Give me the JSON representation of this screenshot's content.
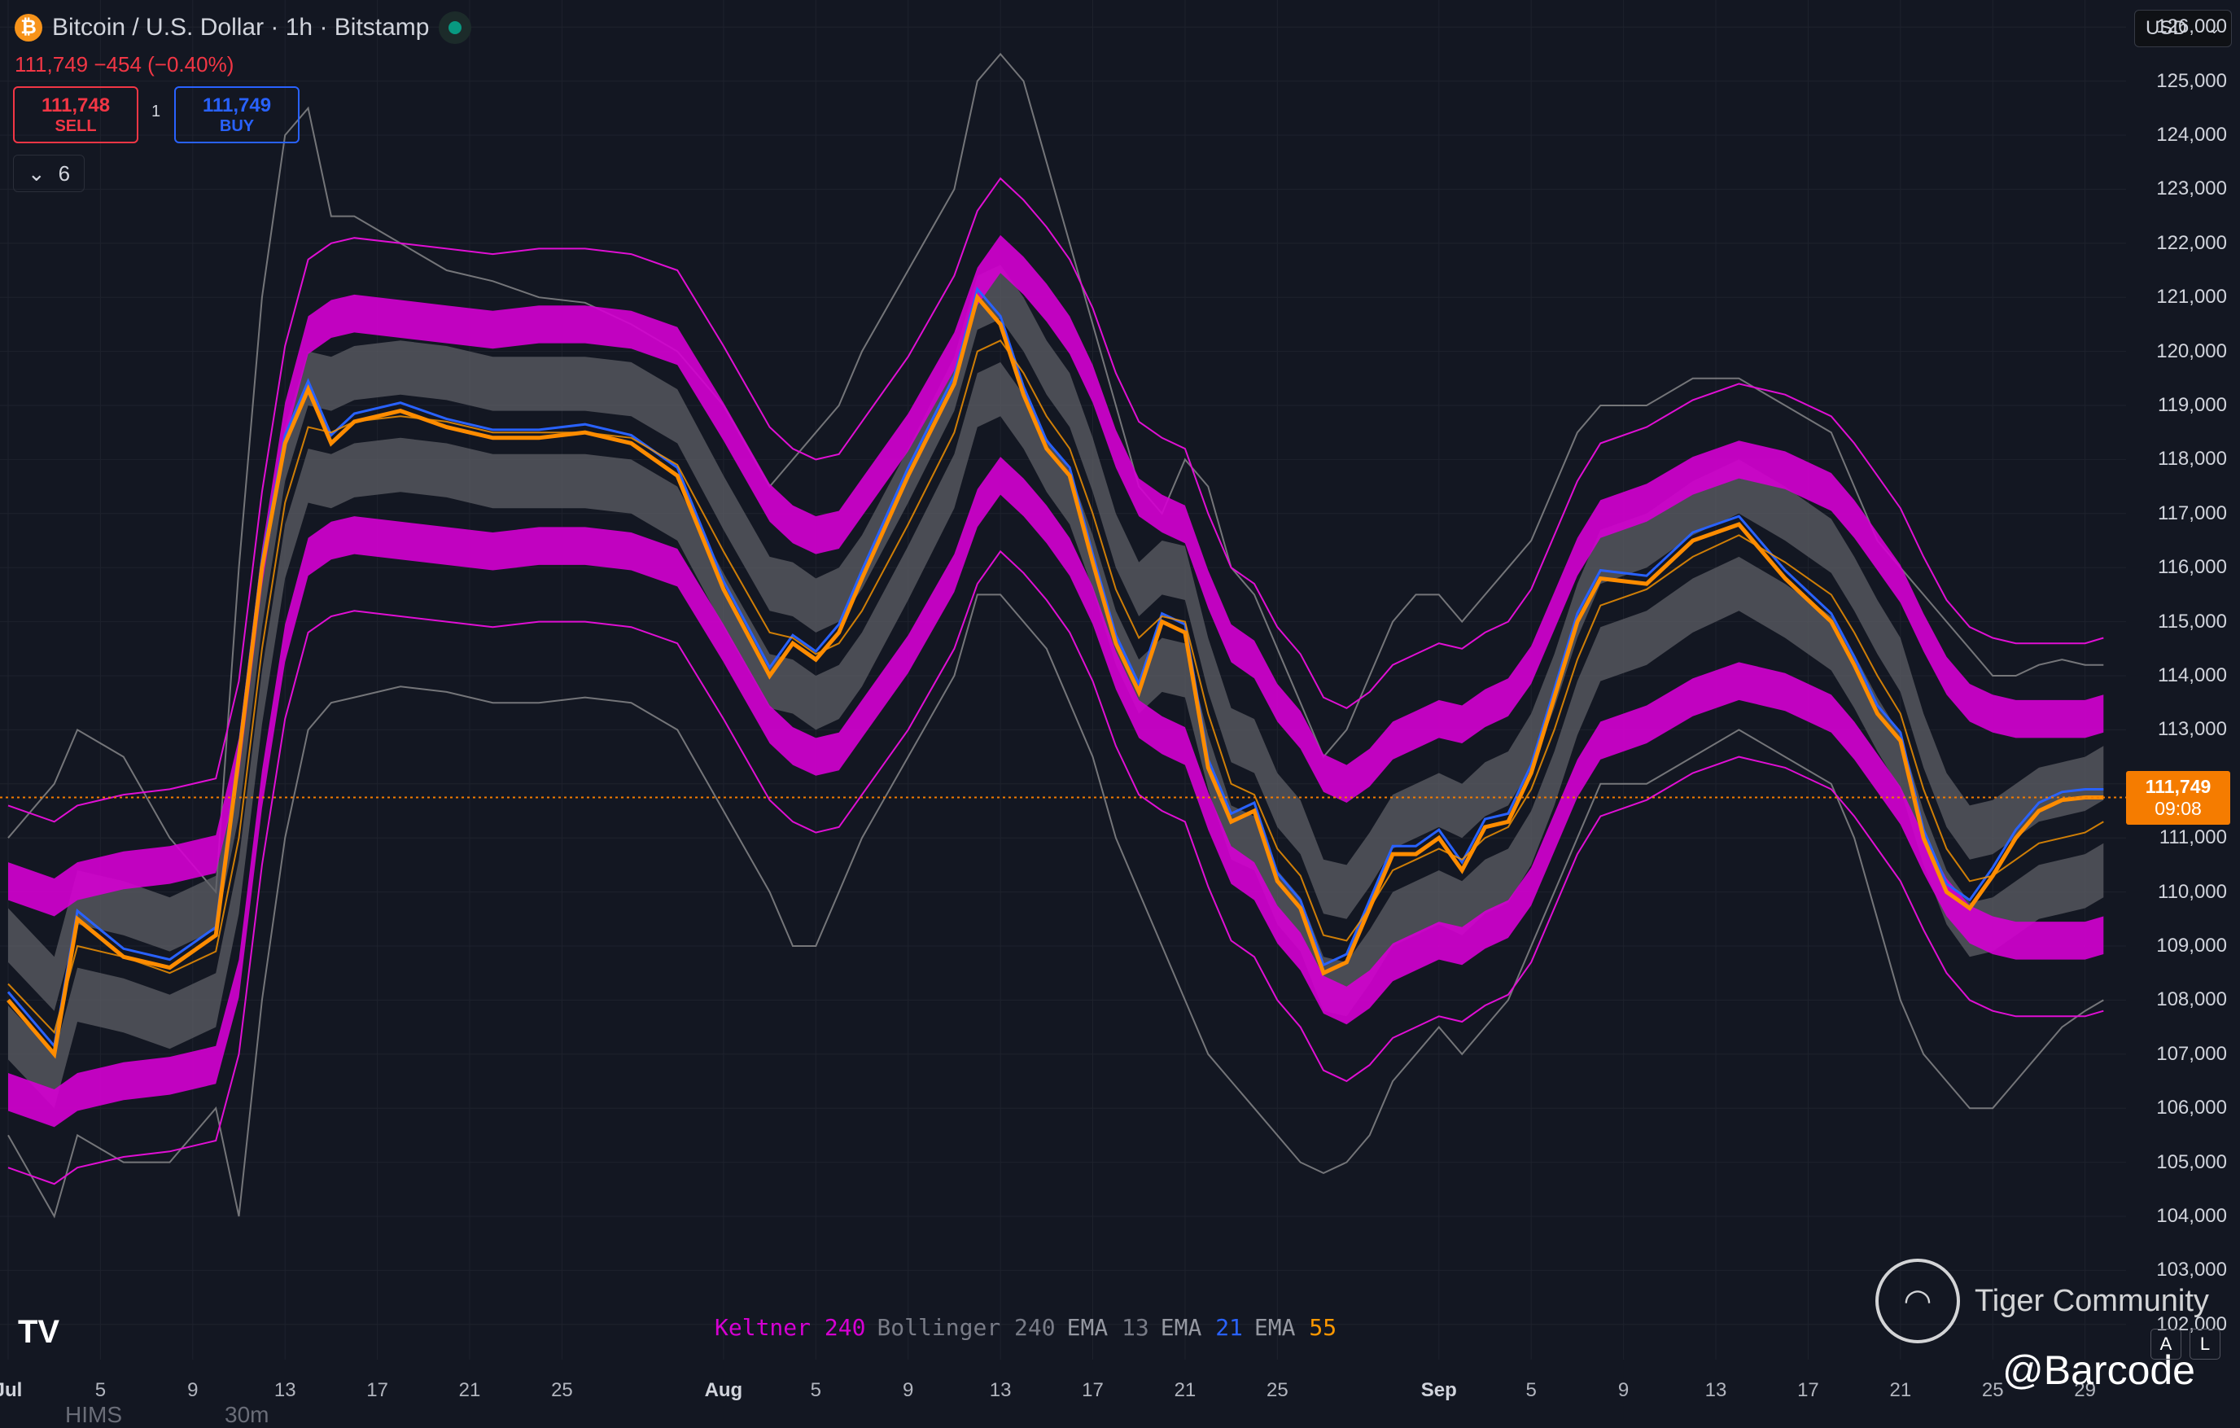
{
  "header": {
    "title": "Bitcoin / U.S. Dollar · 1h · Bitstamp",
    "icon": "bitcoin-icon",
    "change": "111,749 −454 (−0.40%)",
    "sell_price": "111,748",
    "sell_label": "SELL",
    "buy_price": "111,749",
    "buy_label": "BUY",
    "qty": "1",
    "collapse_count": "6",
    "currency": "USD"
  },
  "colors": {
    "keltner": "#e00fd4",
    "bollinger": "#b3b3b3",
    "ema13": "#2962ff",
    "ema21": "#ff9800",
    "ema55": "#ff8c00",
    "price_tag": "#f57c00",
    "background": "#131722"
  },
  "last_price": {
    "value": "111,749",
    "countdown": "09:08"
  },
  "legend": [
    {
      "name": "Keltner",
      "value": "240",
      "color": "#d500d2"
    },
    {
      "name": "Bollinger",
      "value": "240",
      "color": "#787b86"
    },
    {
      "name": "EMA",
      "value": "13",
      "color": "#787b86"
    },
    {
      "name": "EMA",
      "value": "21",
      "color": "#2962ff"
    },
    {
      "name": "EMA",
      "value": "55",
      "color": "#ff9800"
    }
  ],
  "watermark": {
    "community": "Tiger Community",
    "handle": "@Barcode"
  },
  "bottom_strip": {
    "symbol": "HIMS",
    "interval": "30m"
  },
  "toolbar": {
    "auto_label": "A",
    "log_label": "L"
  },
  "chart_data": {
    "type": "line",
    "title": "Bitcoin / U.S. Dollar · 1h · Bitstamp",
    "ylim": [
      101500,
      126500
    ],
    "y_ticks": [
      102000,
      103000,
      104000,
      105000,
      106000,
      107000,
      108000,
      109000,
      110000,
      111000,
      112000,
      113000,
      114000,
      115000,
      116000,
      117000,
      118000,
      119000,
      120000,
      121000,
      122000,
      123000,
      124000,
      125000,
      126000
    ],
    "x_day_range": [
      1,
      92
    ],
    "x_ticks": [
      {
        "label": "Jul",
        "day": 1,
        "major": true
      },
      {
        "label": "5",
        "day": 5
      },
      {
        "label": "9",
        "day": 9
      },
      {
        "label": "13",
        "day": 13
      },
      {
        "label": "17",
        "day": 17
      },
      {
        "label": "21",
        "day": 21
      },
      {
        "label": "25",
        "day": 25
      },
      {
        "label": "Aug",
        "day": 32,
        "major": true
      },
      {
        "label": "5",
        "day": 36
      },
      {
        "label": "9",
        "day": 40
      },
      {
        "label": "13",
        "day": 44
      },
      {
        "label": "17",
        "day": 48
      },
      {
        "label": "21",
        "day": 52
      },
      {
        "label": "25",
        "day": 56
      },
      {
        "label": "Sep",
        "day": 63,
        "major": true
      },
      {
        "label": "5",
        "day": 67
      },
      {
        "label": "9",
        "day": 71
      },
      {
        "label": "13",
        "day": 75
      },
      {
        "label": "17",
        "day": 79
      },
      {
        "label": "21",
        "day": 83
      },
      {
        "label": "25",
        "day": 87
      },
      {
        "label": "29",
        "day": 91
      }
    ],
    "x": [
      1,
      3,
      4,
      6,
      8,
      10,
      11,
      12,
      13,
      14,
      15,
      16,
      18,
      20,
      22,
      24,
      26,
      28,
      30,
      32,
      34,
      35,
      36,
      37,
      38,
      40,
      42,
      43,
      44,
      45,
      46,
      47,
      48,
      49,
      50,
      51,
      52,
      53,
      54,
      55,
      56,
      57,
      58,
      59,
      60,
      61,
      62,
      63,
      64,
      65,
      66,
      67,
      68,
      69,
      70,
      72,
      74,
      76,
      78,
      80,
      81,
      82,
      83,
      84,
      85,
      86,
      87,
      88,
      89,
      90,
      91,
      91.8
    ],
    "series": [
      {
        "name": "EMA 21",
        "values": [
          108000,
          107000,
          109500,
          108800,
          108600,
          109200,
          112500,
          116000,
          118300,
          119300,
          118300,
          118700,
          118900,
          118600,
          118400,
          118400,
          118500,
          118300,
          117700,
          115600,
          114000,
          114600,
          114300,
          114800,
          115800,
          117700,
          119400,
          121000,
          120500,
          119200,
          118200,
          117700,
          116100,
          114600,
          113700,
          115000,
          114800,
          112300,
          111300,
          111500,
          110200,
          109700,
          108500,
          108700,
          109700,
          110700,
          110700,
          111000,
          110400,
          111200,
          111300,
          112200,
          113600,
          115000,
          115800,
          115700,
          116500,
          116800,
          115800,
          115000,
          114200,
          113300,
          112800,
          111000,
          110000,
          109700,
          110300,
          111000,
          111500,
          111700,
          111749,
          111749
        ]
      },
      {
        "name": "EMA 55",
        "values": [
          108300,
          107400,
          109000,
          108800,
          108500,
          108900,
          111000,
          114500,
          117200,
          118600,
          118500,
          118700,
          118800,
          118700,
          118500,
          118500,
          118500,
          118400,
          117900,
          116300,
          114800,
          114700,
          114400,
          114600,
          115200,
          116800,
          118500,
          120000,
          120200,
          119600,
          118800,
          118200,
          117000,
          115600,
          114700,
          115100,
          115000,
          113300,
          112000,
          111800,
          110800,
          110300,
          109200,
          109100,
          109700,
          110400,
          110600,
          110800,
          110600,
          111000,
          111200,
          111900,
          113000,
          114300,
          115300,
          115600,
          116200,
          116600,
          116100,
          115500,
          114800,
          114000,
          113300,
          111900,
          110800,
          110200,
          110300,
          110600,
          110900,
          111000,
          111100,
          111300
        ]
      },
      {
        "name": "Keltner upper",
        "values": [
          110200,
          109900,
          110200,
          110400,
          110500,
          110700,
          112500,
          116000,
          118700,
          120300,
          120600,
          120700,
          120600,
          120500,
          120400,
          120500,
          120500,
          120400,
          120100,
          118700,
          117200,
          116800,
          116600,
          116700,
          117300,
          118500,
          120000,
          121200,
          121800,
          121400,
          120900,
          120300,
          119400,
          118200,
          117300,
          117000,
          116800,
          115600,
          114600,
          114300,
          113500,
          113000,
          112200,
          112000,
          112300,
          112800,
          113000,
          113200,
          113100,
          113400,
          113600,
          114200,
          115200,
          116200,
          116900,
          117200,
          117700,
          118000,
          117800,
          117400,
          116900,
          116300,
          115700,
          114800,
          114000,
          113500,
          113300,
          113200,
          113200,
          113200,
          113200,
          113300
        ]
      },
      {
        "name": "Keltner lower",
        "values": [
          106300,
          106000,
          106300,
          106500,
          106600,
          106800,
          108400,
          111900,
          114600,
          116200,
          116500,
          116600,
          116500,
          116400,
          116300,
          116400,
          116400,
          116300,
          116000,
          114600,
          113100,
          112700,
          112500,
          112600,
          113200,
          114400,
          115900,
          117100,
          117700,
          117300,
          116800,
          116200,
          115300,
          114100,
          113200,
          112900,
          112700,
          111500,
          110500,
          110200,
          109400,
          108900,
          108100,
          107900,
          108200,
          108700,
          108900,
          109100,
          109000,
          109300,
          109500,
          110100,
          111100,
          112100,
          112800,
          113100,
          113600,
          113900,
          113700,
          113300,
          112800,
          112200,
          111600,
          110700,
          109900,
          109400,
          109200,
          109100,
          109100,
          109100,
          109100,
          109200
        ]
      },
      {
        "name": "Bollinger upper",
        "values": [
          111000,
          112000,
          113000,
          112500,
          111000,
          110000,
          116000,
          121000,
          124000,
          124500,
          122500,
          122500,
          122000,
          121500,
          121300,
          121000,
          120900,
          120500,
          120000,
          119000,
          117500,
          118000,
          118500,
          119000,
          120000,
          121500,
          123000,
          125000,
          125500,
          125000,
          123500,
          122000,
          120500,
          119000,
          117500,
          117000,
          118000,
          117500,
          116000,
          115500,
          114500,
          113500,
          112500,
          113000,
          114000,
          115000,
          115500,
          115500,
          115000,
          115500,
          116000,
          116500,
          117500,
          118500,
          119000,
          119000,
          119500,
          119500,
          119000,
          118500,
          117500,
          116500,
          116000,
          115500,
          115000,
          114500,
          114000,
          114000,
          114200,
          114300,
          114200,
          114200
        ]
      },
      {
        "name": "Bollinger lower",
        "values": [
          105500,
          104000,
          105500,
          105000,
          105000,
          106000,
          104000,
          108000,
          111000,
          113000,
          113500,
          113600,
          113800,
          113700,
          113500,
          113500,
          113600,
          113500,
          113000,
          111500,
          110000,
          109000,
          109000,
          110000,
          111000,
          112500,
          114000,
          115500,
          115500,
          115000,
          114500,
          113500,
          112500,
          111000,
          110000,
          109000,
          108000,
          107000,
          106500,
          106000,
          105500,
          105000,
          104800,
          105000,
          105500,
          106500,
          107000,
          107500,
          107000,
          107500,
          108000,
          109000,
          110000,
          111000,
          112000,
          112000,
          112500,
          113000,
          112500,
          112000,
          111000,
          109500,
          108000,
          107000,
          106500,
          106000,
          106000,
          106500,
          107000,
          107500,
          107800,
          108000
        ]
      }
    ]
  }
}
